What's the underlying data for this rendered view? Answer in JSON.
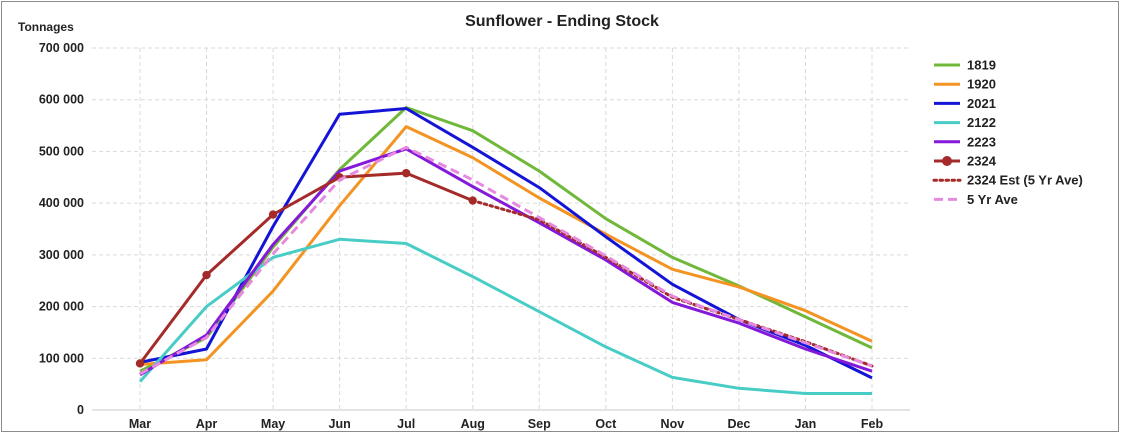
{
  "chart_data": {
    "type": "line",
    "title": "Sunflower - Ending Stock",
    "ylabel": "Tonnages",
    "xlabel": "",
    "ylim": [
      0,
      700000
    ],
    "yticks": [
      0,
      100000,
      200000,
      300000,
      400000,
      500000,
      600000,
      700000
    ],
    "ytick_labels": [
      "0",
      "100 000",
      "200 000",
      "300 000",
      "400 000",
      "500 000",
      "600 000",
      "700 000"
    ],
    "categories": [
      "Mar",
      "Apr",
      "May",
      "Jun",
      "Jul",
      "Aug",
      "Sep",
      "Oct",
      "Nov",
      "Dec",
      "Jan",
      "Feb"
    ],
    "grid": true,
    "legend_position": "right",
    "series": [
      {
        "name": "1819",
        "color": "#70b83a",
        "style": "solid",
        "marker": false,
        "values": [
          75000,
          140000,
          315000,
          465000,
          585000,
          540000,
          462000,
          370000,
          295000,
          240000,
          180000,
          120000
        ]
      },
      {
        "name": "1920",
        "color": "#f39422",
        "style": "solid",
        "marker": false,
        "values": [
          88000,
          97000,
          230000,
          395000,
          548000,
          488000,
          410000,
          340000,
          272000,
          238000,
          192000,
          133000
        ]
      },
      {
        "name": "2021",
        "color": "#1414d6",
        "style": "solid",
        "marker": false,
        "values": [
          92000,
          118000,
          355000,
          572000,
          583000,
          508000,
          430000,
          335000,
          243000,
          175000,
          125000,
          62000
        ]
      },
      {
        "name": "2122",
        "color": "#48cdc6",
        "style": "solid",
        "marker": false,
        "values": [
          55000,
          200000,
          295000,
          330000,
          322000,
          258000,
          190000,
          122000,
          63000,
          42000,
          32000,
          32000
        ]
      },
      {
        "name": "2223",
        "color": "#8419d9",
        "style": "solid",
        "marker": false,
        "values": [
          68000,
          145000,
          320000,
          462000,
          505000,
          432000,
          362000,
          290000,
          208000,
          168000,
          118000,
          75000
        ]
      },
      {
        "name": "2324",
        "color": "#a52a2a",
        "style": "solid",
        "marker": true,
        "values": [
          90000,
          261000,
          378000,
          450000,
          458000,
          405000,
          null,
          null,
          null,
          null,
          null,
          null
        ]
      },
      {
        "name": "2324 Est (5 Yr Ave)",
        "color": "#a52a2a",
        "style": "dotted",
        "marker": false,
        "values": [
          null,
          null,
          null,
          null,
          null,
          405000,
          368000,
          295000,
          218000,
          175000,
          132000,
          85000
        ]
      },
      {
        "name": "5 Yr Ave",
        "color": "#e68ae0",
        "style": "dashed",
        "marker": false,
        "values": [
          70000,
          140000,
          302000,
          445000,
          508000,
          445000,
          372000,
          298000,
          220000,
          175000,
          130000,
          85000
        ]
      }
    ]
  }
}
